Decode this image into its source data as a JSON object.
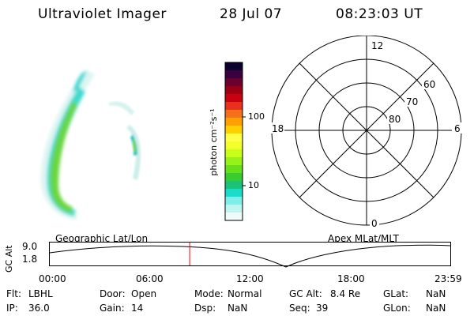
{
  "header": {
    "instrument": "Ultraviolet Imager",
    "date": "28 Jul 07",
    "time": "08:23:03 UT"
  },
  "colorbar": {
    "unit_label": "photon cm⁻²s⁻¹",
    "tick_labels": [
      "100",
      "10"
    ],
    "colors": [
      "#0a0030",
      "#3a0040",
      "#6a0030",
      "#9a0010",
      "#c80010",
      "#e8301c",
      "#f5701a",
      "#ffa000",
      "#ffd000",
      "#ffff4a",
      "#f2ff2a",
      "#c8ff1a",
      "#98f21a",
      "#66e01a",
      "#38cc2e",
      "#1cc278",
      "#18dccc",
      "#7eeee8",
      "#c0f4f0",
      "#eefcfa"
    ]
  },
  "polar_plot": {
    "clock_labels": [
      "12",
      "18",
      "6",
      "0"
    ],
    "lat_labels": [
      "60",
      "70",
      "80"
    ]
  },
  "timeline": {
    "left_title": "Geographic Lat/Lon",
    "right_title": "Apex  MLat/MLT",
    "axis_title": "GC Alt",
    "y_ticks": [
      "9.0",
      "1.8"
    ],
    "x_ticks": [
      "00:00",
      "06:00",
      "12:00",
      "18:00",
      "23:59"
    ],
    "marker_time_hours": 8.384
  },
  "status": {
    "flt_label": "Flt:",
    "flt_value": "LBHL",
    "ip_label": "IP:",
    "ip_value": "36.0",
    "door_label": "Door:",
    "door_value": "Open",
    "gain_label": "Gain:",
    "gain_value": "14",
    "mode_label": "Mode:",
    "mode_value": "Normal",
    "dsp_label": "Dsp:",
    "dsp_value": "NaN",
    "gcalt_label": "GC Alt:",
    "gcalt_value": "8.4 Re",
    "seq_label": "Seq:",
    "seq_value": "39",
    "glat_label": "GLat:",
    "glat_value": "NaN",
    "glon_label": "GLon:",
    "glon_value": "NaN"
  },
  "theme": {
    "marker_color": "#ff0000",
    "line_color": "#000000"
  }
}
